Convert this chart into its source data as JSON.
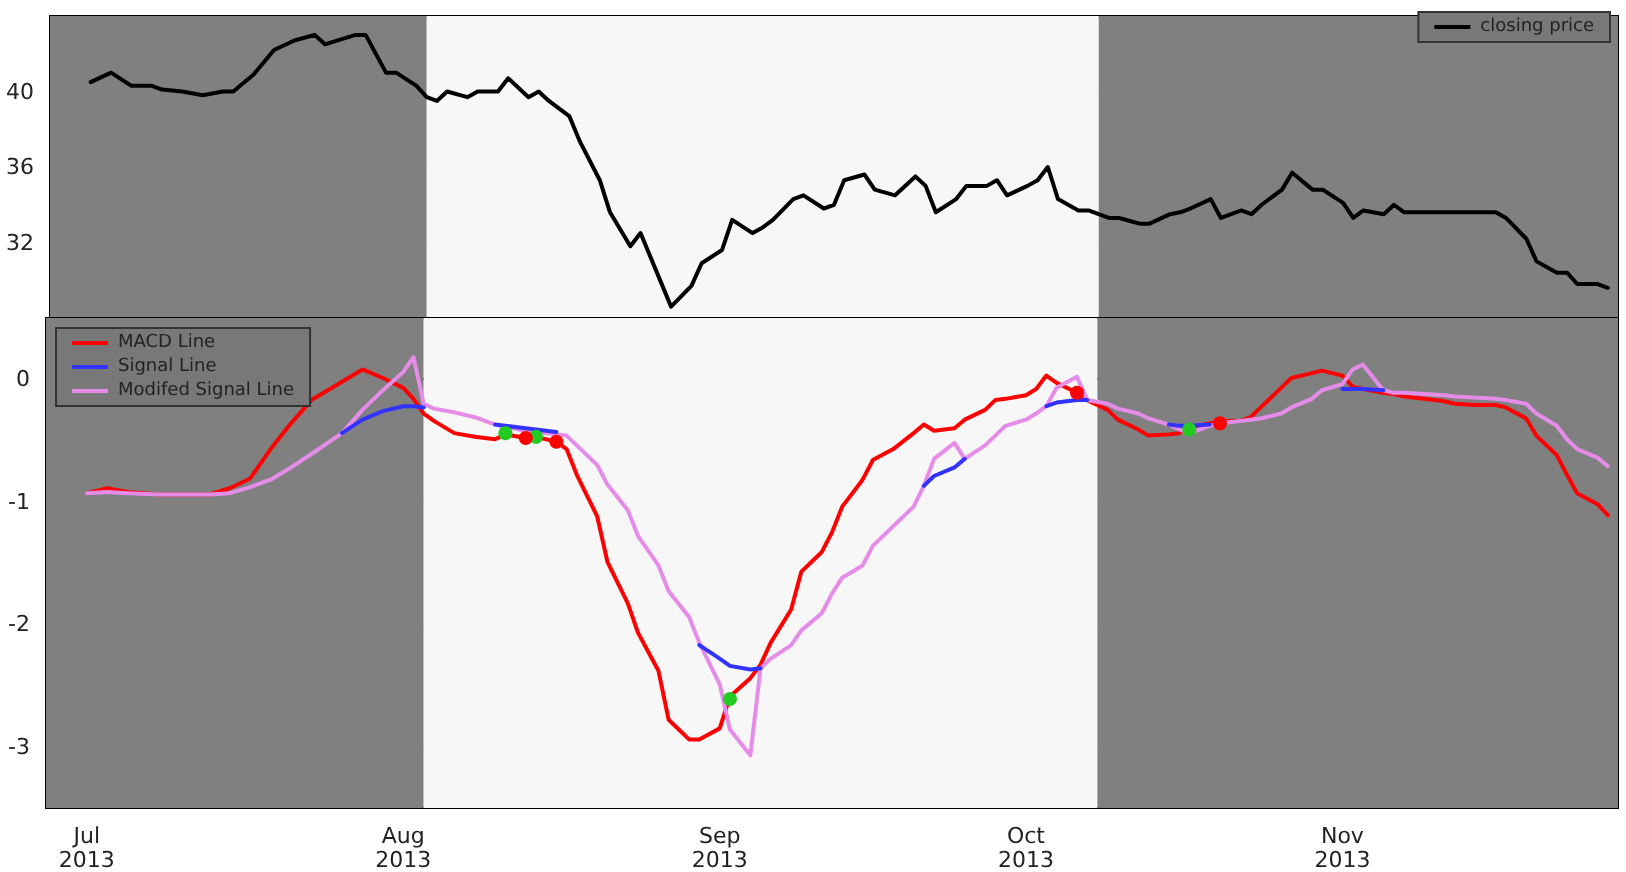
{
  "chart_data": [
    {
      "type": "line",
      "tick_labels": "y",
      "grid": true,
      "legend": "top right",
      "marker": "none",
      "line_style": "solid",
      "xlim": [
        "2013-06-27",
        "2013-11-28"
      ],
      "xticks": [
        {
          "value": "2013-07-01",
          "label": null
        },
        {
          "value": "2013-08-01",
          "label": null
        },
        {
          "value": "2013-09-01",
          "label": null
        },
        {
          "value": "2013-10-01",
          "label": null
        },
        {
          "value": "2013-11-01",
          "label": null
        }
      ],
      "ylim": [
        28,
        44
      ],
      "yticks": [
        32,
        36,
        40
      ],
      "bands": [
        {
          "axis": "x",
          "from": "2013-06-27",
          "to": "2013-08-03",
          "color": "#808080"
        },
        {
          "axis": "x",
          "from": "2013-08-03",
          "to": "2013-10-08",
          "color": "#f7f7f7"
        },
        {
          "axis": "x",
          "from": "2013-10-08",
          "to": "2013-11-28",
          "color": "#808080"
        }
      ],
      "x": [
        "2013-07-01",
        "2013-07-03",
        "2013-07-05",
        "2013-07-07",
        "2013-07-08",
        "2013-07-10",
        "2013-07-12",
        "2013-07-14",
        "2013-07-15",
        "2013-07-17",
        "2013-07-19",
        "2013-07-21",
        "2013-07-23",
        "2013-07-24",
        "2013-07-27",
        "2013-07-28",
        "2013-07-30",
        "2013-07-31",
        "2013-08-02",
        "2013-08-03",
        "2013-08-04",
        "2013-08-05",
        "2013-08-07",
        "2013-08-08",
        "2013-08-10",
        "2013-08-11",
        "2013-08-13",
        "2013-08-14",
        "2013-08-15",
        "2013-08-17",
        "2013-08-18",
        "2013-08-20",
        "2013-08-21",
        "2013-08-23",
        "2013-08-24",
        "2013-08-26",
        "2013-08-27",
        "2013-08-29",
        "2013-08-30",
        "2013-09-01",
        "2013-09-02",
        "2013-09-04",
        "2013-09-05",
        "2013-09-06",
        "2013-09-08",
        "2013-09-09",
        "2013-09-11",
        "2013-09-12",
        "2013-09-13",
        "2013-09-15",
        "2013-09-16",
        "2013-09-18",
        "2013-09-20",
        "2013-09-21",
        "2013-09-22",
        "2013-09-24",
        "2013-09-25",
        "2013-09-27",
        "2013-09-28",
        "2013-09-29",
        "2013-10-01",
        "2013-10-02",
        "2013-10-03",
        "2013-10-04",
        "2013-10-06",
        "2013-10-07",
        "2013-10-09",
        "2013-10-10",
        "2013-10-12",
        "2013-10-13",
        "2013-10-15",
        "2013-10-16",
        "2013-10-17",
        "2013-10-19",
        "2013-10-20",
        "2013-10-22",
        "2013-10-23",
        "2013-10-24",
        "2013-10-26",
        "2013-10-27",
        "2013-10-29",
        "2013-10-30",
        "2013-11-01",
        "2013-11-02",
        "2013-11-03",
        "2013-11-05",
        "2013-11-06",
        "2013-11-07",
        "2013-11-16",
        "2013-11-17",
        "2013-11-19",
        "2013-11-20",
        "2013-11-22",
        "2013-11-23",
        "2013-11-24",
        "2013-11-26",
        "2013-11-27"
      ],
      "series": [
        {
          "name": "closing price",
          "color": "#000000",
          "values": [
            40.5,
            41.0,
            40.3,
            40.3,
            40.1,
            40.0,
            39.8,
            40.0,
            40.0,
            40.9,
            42.2,
            42.7,
            43.0,
            42.5,
            43.0,
            43.0,
            41.0,
            41.0,
            40.3,
            39.7,
            39.5,
            40.0,
            39.7,
            40.0,
            40.0,
            40.7,
            39.7,
            40.0,
            39.5,
            38.7,
            37.4,
            35.3,
            33.6,
            31.8,
            32.5,
            29.9,
            28.6,
            29.7,
            30.9,
            31.6,
            33.2,
            32.5,
            32.8,
            33.2,
            34.3,
            34.5,
            33.8,
            34.0,
            35.3,
            35.6,
            34.8,
            34.5,
            35.5,
            35.0,
            33.6,
            34.3,
            35.0,
            35.0,
            35.3,
            34.5,
            35.0,
            35.3,
            36.0,
            34.3,
            33.7,
            33.7,
            33.3,
            33.3,
            33.0,
            33.0,
            33.5,
            33.6,
            33.8,
            34.3,
            33.3,
            33.7,
            33.5,
            34.0,
            34.8,
            35.7,
            34.8,
            34.8,
            34.1,
            33.3,
            33.7,
            33.5,
            34.0,
            33.6,
            33.6,
            33.3,
            32.2,
            31.0,
            30.4,
            30.4,
            29.8,
            29.8,
            29.6
          ]
        }
      ]
    },
    {
      "type": "line",
      "grid": true,
      "legend": "top left",
      "marker": "none",
      "line_style": "solid",
      "xlim": [
        "2013-06-27",
        "2013-11-28"
      ],
      "xticks": [
        {
          "value": "2013-07-01",
          "label": "Jul\n2013"
        },
        {
          "value": "2013-08-01",
          "label": "Aug\n2013"
        },
        {
          "value": "2013-09-01",
          "label": "Sep\n2013"
        },
        {
          "value": "2013-10-01",
          "label": "Oct\n2013"
        },
        {
          "value": "2013-11-01",
          "label": "Nov\n2013"
        }
      ],
      "ylim": [
        -3.5,
        0.5
      ],
      "yticks": [
        -3,
        -2,
        -1,
        0
      ],
      "bands": [
        {
          "axis": "x",
          "from": "2013-06-27",
          "to": "2013-08-03",
          "color": "#808080"
        },
        {
          "axis": "x",
          "from": "2013-08-03",
          "to": "2013-10-08",
          "color": "#f7f7f7"
        },
        {
          "axis": "x",
          "from": "2013-10-08",
          "to": "2013-11-28",
          "color": "#808080"
        }
      ],
      "x": [
        "2013-07-01",
        "2013-07-03",
        "2013-07-05",
        "2013-07-08",
        "2013-07-13",
        "2013-07-15",
        "2013-07-17",
        "2013-07-19",
        "2013-07-21",
        "2013-07-23",
        "2013-07-26",
        "2013-07-28",
        "2013-07-30",
        "2013-08-01",
        "2013-08-02",
        "2013-08-03",
        "2013-08-04",
        "2013-08-06",
        "2013-08-08",
        "2013-08-10",
        "2013-08-11",
        "2013-08-13",
        "2013-08-14",
        "2013-08-16",
        "2013-08-17",
        "2013-08-18",
        "2013-08-20",
        "2013-08-21",
        "2013-08-23",
        "2013-08-24",
        "2013-08-26",
        "2013-08-27",
        "2013-08-29",
        "2013-08-30",
        "2013-09-01",
        "2013-09-02",
        "2013-09-04",
        "2013-09-05",
        "2013-09-06",
        "2013-09-08",
        "2013-09-09",
        "2013-09-11",
        "2013-09-12",
        "2013-09-13",
        "2013-09-15",
        "2013-09-16",
        "2013-09-18",
        "2013-09-20",
        "2013-09-21",
        "2013-09-22",
        "2013-09-24",
        "2013-09-25",
        "2013-09-27",
        "2013-09-28",
        "2013-09-29",
        "2013-10-01",
        "2013-10-02",
        "2013-10-03",
        "2013-10-04",
        "2013-10-06",
        "2013-10-07",
        "2013-10-09",
        "2013-10-10",
        "2013-10-12",
        "2013-10-13",
        "2013-10-15",
        "2013-10-16",
        "2013-10-17",
        "2013-10-19",
        "2013-10-20",
        "2013-10-22",
        "2013-10-23",
        "2013-10-24",
        "2013-10-26",
        "2013-10-27",
        "2013-10-29",
        "2013-10-30",
        "2013-11-01",
        "2013-11-02",
        "2013-11-03",
        "2013-11-05",
        "2013-11-06",
        "2013-11-07",
        "2013-11-09",
        "2013-11-11",
        "2013-11-12",
        "2013-11-14",
        "2013-11-16",
        "2013-11-17",
        "2013-11-19",
        "2013-11-20",
        "2013-11-22",
        "2013-11-23",
        "2013-11-24",
        "2013-11-26",
        "2013-11-27"
      ],
      "series": [
        {
          "name": "MACD Line",
          "color": "#ff0000",
          "values": [
            -0.93,
            -0.89,
            -0.92,
            -0.94,
            -0.94,
            -0.89,
            -0.81,
            -0.57,
            -0.36,
            -0.17,
            -0.02,
            0.08,
            0.01,
            -0.07,
            -0.16,
            -0.28,
            -0.34,
            -0.44,
            -0.47,
            -0.49,
            -0.45,
            -0.48,
            -0.47,
            -0.51,
            -0.57,
            -0.78,
            -1.12,
            -1.49,
            -1.83,
            -2.07,
            -2.38,
            -2.78,
            -2.94,
            -2.94,
            -2.85,
            -2.59,
            -2.44,
            -2.33,
            -2.15,
            -1.88,
            -1.57,
            -1.41,
            -1.25,
            -1.04,
            -0.82,
            -0.66,
            -0.57,
            -0.44,
            -0.37,
            -0.42,
            -0.4,
            -0.33,
            -0.25,
            -0.17,
            -0.16,
            -0.13,
            -0.08,
            0.03,
            -0.03,
            -0.11,
            -0.17,
            -0.25,
            -0.33,
            -0.41,
            -0.46,
            -0.45,
            -0.44,
            -0.39,
            -0.36,
            -0.34,
            -0.34,
            -0.31,
            -0.23,
            -0.07,
            0.01,
            0.05,
            0.07,
            0.03,
            -0.06,
            -0.08,
            -0.11,
            -0.12,
            -0.14,
            -0.16,
            -0.18,
            -0.2,
            -0.21,
            -0.21,
            -0.23,
            -0.32,
            -0.46,
            -0.62,
            -0.78,
            -0.93,
            -1.02,
            -1.11
          ]
        },
        {
          "name": "Signal Line",
          "color": "#3333ff",
          "x": [
            "2013-07-26",
            "2013-07-28",
            "2013-07-30",
            "2013-08-01",
            "2013-08-02",
            "2013-08-03",
            "2013-08-06",
            "2013-08-10",
            "2013-08-11",
            "2013-08-13",
            "2013-08-14",
            "2013-08-16",
            "2013-08-20",
            "2013-08-30",
            "2013-09-01",
            "2013-09-02",
            "2013-09-04",
            "2013-09-05",
            "2013-09-13",
            "2013-09-21",
            "2013-09-22",
            "2013-09-24",
            "2013-09-25",
            "2013-09-28",
            "2013-10-03",
            "2013-10-04",
            "2013-10-06",
            "2013-10-07",
            "2013-10-10",
            "2013-10-15",
            "2013-10-16",
            "2013-10-17",
            "2013-10-19",
            "2013-10-24",
            "2013-11-01",
            "2013-11-02",
            "2013-11-03",
            "2013-11-05"
          ],
          "values": [
            -0.44,
            -0.33,
            -0.26,
            -0.22,
            -0.22,
            -0.23,
            null,
            -0.37,
            -0.38,
            -0.4,
            -0.41,
            -0.43,
            null,
            -2.17,
            -2.28,
            -2.34,
            -2.37,
            -2.36,
            null,
            -0.87,
            -0.79,
            -0.72,
            -0.65,
            null,
            -0.22,
            -0.19,
            -0.17,
            -0.17,
            null,
            -0.37,
            -0.38,
            -0.38,
            -0.37,
            null,
            -0.08,
            -0.08,
            -0.08,
            -0.09
          ]
        },
        {
          "name": "Modifed Signal Line",
          "color": "#e58ce8",
          "values": [
            -0.93,
            -0.92,
            -0.93,
            -0.94,
            -0.94,
            -0.93,
            -0.88,
            -0.82,
            -0.72,
            -0.61,
            -0.44,
            -0.25,
            -0.09,
            0.06,
            0.18,
            -0.2,
            -0.24,
            -0.27,
            -0.31,
            -0.37,
            -0.39,
            -0.42,
            -0.43,
            -0.45,
            -0.46,
            -0.54,
            -0.7,
            -0.86,
            -1.07,
            -1.28,
            -1.52,
            -1.73,
            -1.94,
            -2.15,
            -2.49,
            -2.86,
            -3.07,
            -2.36,
            -2.28,
            -2.17,
            -2.05,
            -1.91,
            -1.75,
            -1.62,
            -1.52,
            -1.36,
            -1.2,
            -1.04,
            -0.87,
            -0.65,
            -0.52,
            -0.65,
            -0.54,
            -0.46,
            -0.38,
            -0.33,
            -0.28,
            -0.22,
            -0.07,
            0.02,
            -0.17,
            -0.2,
            -0.24,
            -0.28,
            -0.32,
            -0.37,
            -0.41,
            -0.44,
            -0.38,
            -0.36,
            -0.34,
            -0.33,
            -0.32,
            -0.28,
            -0.23,
            -0.16,
            -0.09,
            -0.04,
            0.08,
            0.12,
            -0.09,
            -0.11,
            -0.11,
            -0.12,
            -0.13,
            -0.14,
            -0.15,
            -0.16,
            -0.17,
            -0.2,
            -0.28,
            -0.38,
            -0.49,
            -0.57,
            -0.64,
            -0.71
          ]
        },
        {
          "type": "scatter",
          "marker": "circle",
          "color": "#22cc22",
          "x": [
            "2013-08-11",
            "2013-08-14",
            "2013-09-02",
            "2013-10-17"
          ],
          "values": [
            -0.44,
            -0.47,
            -2.61,
            -0.41
          ]
        },
        {
          "type": "scatter",
          "marker": "circle",
          "color": "#ff0000",
          "x": [
            "2013-08-13",
            "2013-08-16",
            "2013-10-06",
            "2013-10-20"
          ],
          "values": [
            -0.48,
            -0.51,
            -0.11,
            -0.36
          ]
        }
      ]
    }
  ]
}
